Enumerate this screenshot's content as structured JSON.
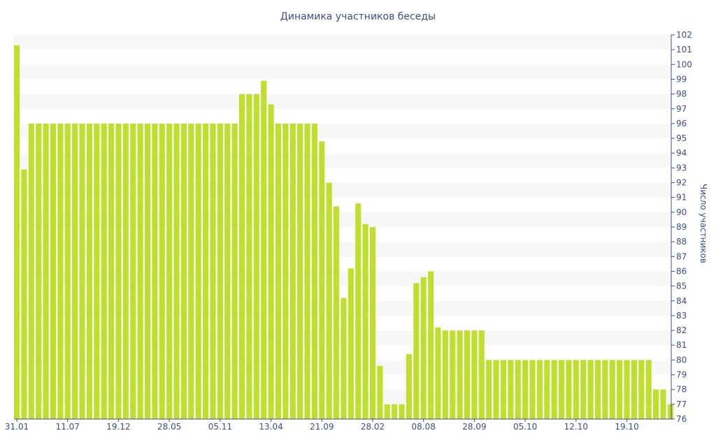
{
  "chart_data": {
    "type": "bar",
    "title": "Динамика участников беседы",
    "ylabel": "Число участников",
    "xlabel": "",
    "ylim": [
      76,
      102
    ],
    "y_axis_position": "right",
    "grid": "horizontal bands",
    "legend": "none",
    "bar_color": "#bfdf2f",
    "band_color": "#f7f7f7",
    "text_color": "#3a4f8a",
    "x_tick_labels": [
      "31.01",
      "11.07",
      "19.12",
      "28.05",
      "05.11",
      "13.04",
      "21.09",
      "28.02",
      "08.08",
      "28.09",
      "05.10",
      "12.10",
      "19.10"
    ],
    "x_tick_indices": [
      0,
      7,
      14,
      21,
      28,
      35,
      42,
      49,
      56,
      63,
      70,
      77,
      84
    ],
    "y_ticks": [
      76,
      77,
      78,
      79,
      80,
      81,
      82,
      83,
      84,
      85,
      86,
      87,
      88,
      89,
      90,
      91,
      92,
      93,
      94,
      95,
      96,
      97,
      98,
      99,
      100,
      101,
      102
    ],
    "values": [
      101.3,
      92.9,
      96,
      96,
      96,
      96,
      96,
      96,
      96,
      96,
      96,
      96,
      96,
      96,
      96,
      96,
      96,
      96,
      96,
      96,
      96,
      96,
      96,
      96,
      96,
      96,
      96,
      96,
      96,
      96,
      96,
      98,
      98,
      98,
      98.9,
      97.3,
      96,
      96,
      96,
      96,
      96,
      96,
      94.8,
      92,
      90.4,
      84.2,
      86.2,
      90.6,
      89.2,
      89,
      79.6,
      77,
      77,
      77,
      80.4,
      85.2,
      85.6,
      86,
      82.2,
      82,
      82,
      82,
      82,
      82,
      82,
      80,
      80,
      80,
      80,
      80,
      80,
      80,
      80,
      80,
      80,
      80,
      80,
      80,
      80,
      80,
      80,
      80,
      80,
      80,
      80,
      80,
      80,
      80,
      78,
      78,
      77
    ]
  }
}
